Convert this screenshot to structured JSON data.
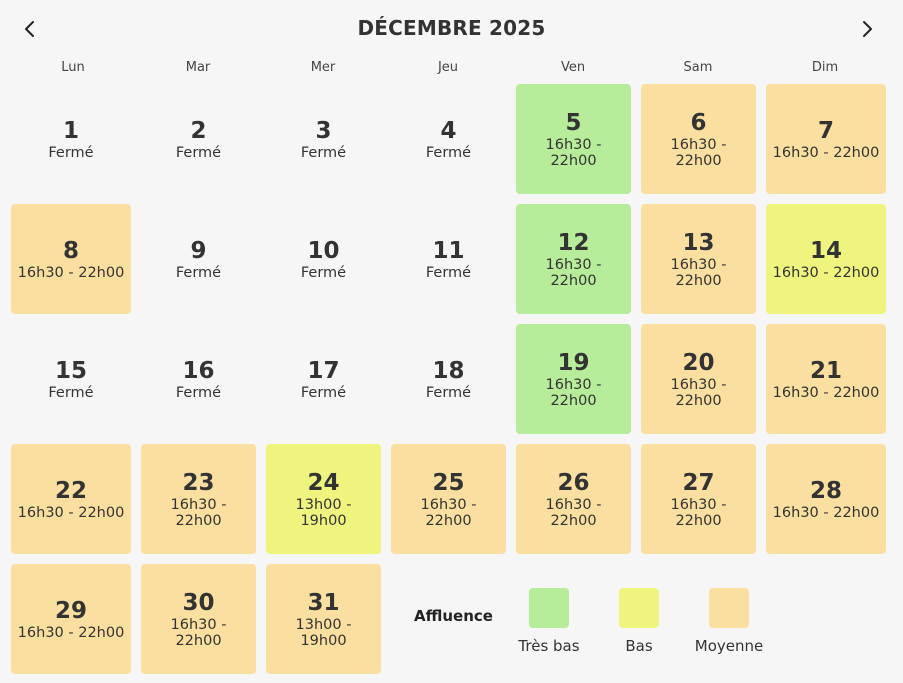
{
  "header": {
    "title": "DÉCEMBRE 2025"
  },
  "weekdays": [
    "Lun",
    "Mar",
    "Mer",
    "Jeu",
    "Ven",
    "Sam",
    "Dim"
  ],
  "colors": {
    "tres_bas": "#b7ec9b",
    "bas": "#eef47d",
    "moyenne": "#fbdfa0"
  },
  "days": [
    {
      "day": "1",
      "hours": "Fermé",
      "level": "closed"
    },
    {
      "day": "2",
      "hours": "Fermé",
      "level": "closed"
    },
    {
      "day": "3",
      "hours": "Fermé",
      "level": "closed"
    },
    {
      "day": "4",
      "hours": "Fermé",
      "level": "closed"
    },
    {
      "day": "5",
      "hours": "16h30 - 22h00",
      "level": "tres_bas"
    },
    {
      "day": "6",
      "hours": "16h30 - 22h00",
      "level": "moyenne"
    },
    {
      "day": "7",
      "hours": "16h30 - 22h00",
      "level": "moyenne"
    },
    {
      "day": "8",
      "hours": "16h30 - 22h00",
      "level": "moyenne"
    },
    {
      "day": "9",
      "hours": "Fermé",
      "level": "closed"
    },
    {
      "day": "10",
      "hours": "Fermé",
      "level": "closed"
    },
    {
      "day": "11",
      "hours": "Fermé",
      "level": "closed"
    },
    {
      "day": "12",
      "hours": "16h30 - 22h00",
      "level": "tres_bas"
    },
    {
      "day": "13",
      "hours": "16h30 - 22h00",
      "level": "moyenne"
    },
    {
      "day": "14",
      "hours": "16h30 - 22h00",
      "level": "bas"
    },
    {
      "day": "15",
      "hours": "Fermé",
      "level": "closed"
    },
    {
      "day": "16",
      "hours": "Fermé",
      "level": "closed"
    },
    {
      "day": "17",
      "hours": "Fermé",
      "level": "closed"
    },
    {
      "day": "18",
      "hours": "Fermé",
      "level": "closed"
    },
    {
      "day": "19",
      "hours": "16h30 - 22h00",
      "level": "tres_bas"
    },
    {
      "day": "20",
      "hours": "16h30 - 22h00",
      "level": "moyenne"
    },
    {
      "day": "21",
      "hours": "16h30 - 22h00",
      "level": "moyenne"
    },
    {
      "day": "22",
      "hours": "16h30 - 22h00",
      "level": "moyenne"
    },
    {
      "day": "23",
      "hours": "16h30 - 22h00",
      "level": "moyenne"
    },
    {
      "day": "24",
      "hours": "13h00 - 19h00",
      "level": "bas"
    },
    {
      "day": "25",
      "hours": "16h30 - 22h00",
      "level": "moyenne"
    },
    {
      "day": "26",
      "hours": "16h30 - 22h00",
      "level": "moyenne"
    },
    {
      "day": "27",
      "hours": "16h30 - 22h00",
      "level": "moyenne"
    },
    {
      "day": "28",
      "hours": "16h30 - 22h00",
      "level": "moyenne"
    },
    {
      "day": "29",
      "hours": "16h30 - 22h00",
      "level": "moyenne"
    },
    {
      "day": "30",
      "hours": "16h30 - 22h00",
      "level": "moyenne"
    },
    {
      "day": "31",
      "hours": "13h00 - 19h00",
      "level": "moyenne"
    }
  ],
  "legend": {
    "title": "Affluence",
    "items": [
      {
        "label": "Très bas",
        "level": "tres_bas"
      },
      {
        "label": "Bas",
        "level": "bas"
      },
      {
        "label": "Moyenne",
        "level": "moyenne"
      }
    ]
  }
}
